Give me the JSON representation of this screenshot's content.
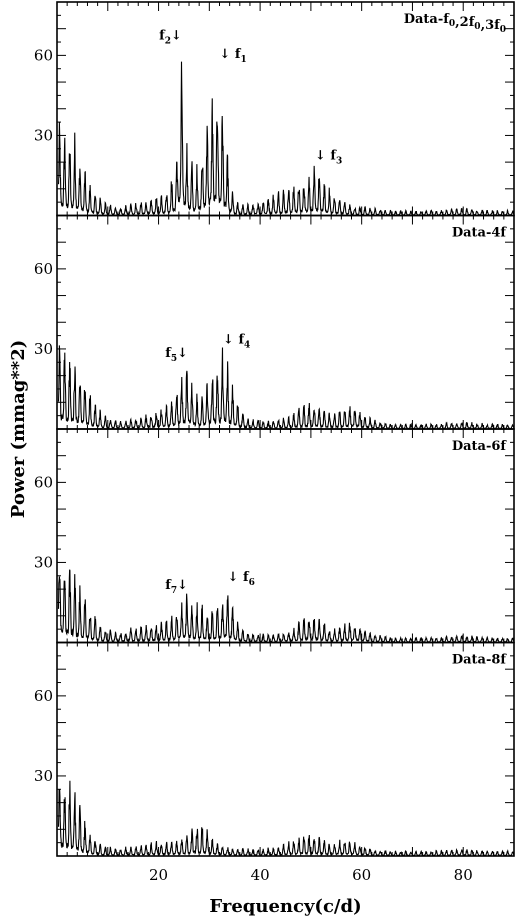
{
  "chart_data": {
    "type": "line",
    "xlabel": "Frequency(c/d)",
    "ylabel": "Power (mmag**2)",
    "xlim": [
      0,
      90
    ],
    "ylim": [
      0,
      80
    ],
    "x_ticks": [
      20,
      40,
      60,
      80
    ],
    "y_ticks": [
      30,
      60
    ],
    "panels": [
      {
        "label": "Data-f0,2f0,3f0",
        "label_parts": {
          "prefix": "Data-",
          "terms": [
            {
              "base": "f",
              "sub": "0",
              "coef": ""
            },
            {
              "base": "f",
              "sub": "0",
              "coef": "2"
            },
            {
              "base": "f",
              "sub": "0",
              "coef": "3"
            }
          ]
        },
        "annotations": [
          {
            "base": "f",
            "sub": "2",
            "x": 24.6,
            "y": 66,
            "arrow": "after"
          },
          {
            "base": "f",
            "sub": "1",
            "x": 32.0,
            "y": 59,
            "arrow": "before"
          },
          {
            "base": "f",
            "sub": "3",
            "x": 50.8,
            "y": 21,
            "arrow": "before"
          }
        ],
        "series": {
          "x": [
            0.5,
            1.5,
            2.5,
            3.5,
            4.5,
            5.5,
            7,
            9,
            12,
            15,
            18,
            20,
            22,
            23.5,
            24.2,
            24.6,
            25.3,
            26,
            27,
            28,
            29.5,
            30.5,
            31.4,
            32.0,
            32.6,
            33.3,
            34,
            35,
            37,
            40,
            43,
            46,
            48,
            49.5,
            50.8,
            51.5,
            53,
            55,
            58,
            62,
            66,
            70,
            75,
            80,
            85,
            90
          ],
          "y": [
            36,
            34,
            30,
            32,
            22,
            18,
            10,
            6,
            3,
            5,
            6,
            8,
            12,
            20,
            62,
            62,
            32,
            26,
            18,
            22,
            40,
            48,
            55,
            50,
            45,
            30,
            14,
            6,
            4,
            6,
            9,
            12,
            14,
            16,
            19,
            18,
            12,
            8,
            4,
            3,
            2,
            2,
            2,
            3,
            2,
            2
          ]
        }
      },
      {
        "label": "Data-4f",
        "annotations": [
          {
            "base": "f",
            "sub": "5",
            "x": 25.8,
            "y": 27,
            "arrow": "after"
          },
          {
            "base": "f",
            "sub": "4",
            "x": 32.7,
            "y": 32,
            "arrow": "before"
          }
        ],
        "series": {
          "x": [
            0.5,
            1.5,
            2.5,
            3.5,
            4.5,
            5.5,
            7,
            9,
            12,
            15,
            18,
            20,
            22,
            23.5,
            24.5,
            25.8,
            26.5,
            27.5,
            28.5,
            30,
            31,
            32,
            32.7,
            33.5,
            34.5,
            36,
            38,
            42,
            46,
            48,
            50,
            52,
            54,
            56,
            58,
            62,
            66,
            70,
            75,
            80,
            85,
            90
          ],
          "y": [
            35,
            34,
            30,
            30,
            24,
            20,
            12,
            6,
            3,
            4,
            6,
            8,
            10,
            18,
            22,
            25,
            20,
            14,
            12,
            22,
            26,
            28,
            31,
            28,
            18,
            8,
            4,
            3,
            5,
            9,
            11,
            9,
            6,
            8,
            10,
            4,
            2,
            2,
            2,
            3,
            2,
            2
          ]
        }
      },
      {
        "label": "Data-6f",
        "annotations": [
          {
            "base": "f",
            "sub": "7",
            "x": 25.8,
            "y": 20,
            "arrow": "after"
          },
          {
            "base": "f",
            "sub": "6",
            "x": 33.6,
            "y": 23,
            "arrow": "before"
          }
        ],
        "series": {
          "x": [
            0.5,
            1.5,
            2.5,
            3.5,
            4.5,
            5.5,
            7,
            9,
            12,
            15,
            18,
            20,
            22,
            23.5,
            24.8,
            25.8,
            26.8,
            28,
            29.5,
            31,
            32.5,
            33.6,
            34.5,
            36,
            38,
            42,
            46,
            48,
            50,
            52,
            54,
            56,
            58,
            62,
            66,
            70,
            75,
            80,
            85,
            90
          ],
          "y": [
            38,
            32,
            34,
            28,
            22,
            18,
            12,
            6,
            4,
            6,
            7,
            8,
            10,
            12,
            19,
            20,
            14,
            17,
            12,
            14,
            18,
            22,
            16,
            6,
            4,
            3,
            5,
            9,
            12,
            10,
            5,
            7,
            9,
            4,
            2,
            2,
            2,
            3,
            2,
            2
          ]
        }
      },
      {
        "label": "Data-8f",
        "annotations": [],
        "series": {
          "x": [
            0.5,
            1.5,
            2.5,
            3.5,
            4.5,
            5.5,
            7,
            9,
            12,
            15,
            18,
            20,
            22,
            24,
            26,
            27.5,
            28.5,
            29.5,
            31,
            33,
            36,
            40,
            44,
            46,
            48,
            49,
            50,
            52,
            54,
            56,
            58,
            62,
            66,
            70,
            75,
            80,
            85,
            90
          ],
          "y": [
            38,
            30,
            32,
            26,
            20,
            14,
            8,
            4,
            3,
            4,
            5,
            6,
            6,
            7,
            9,
            14,
            13,
            11,
            6,
            4,
            3,
            3,
            4,
            6,
            8,
            10,
            9,
            7,
            5,
            7,
            6,
            3,
            2,
            2,
            2,
            3,
            2,
            2
          ]
        }
      }
    ]
  }
}
